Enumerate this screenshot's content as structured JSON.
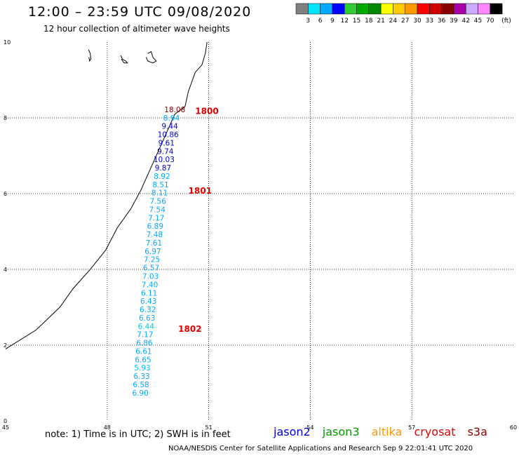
{
  "header": {
    "title": "12:00 – 23:59 UTC 09/08/2020",
    "subtitle": "12 hour collection of altimeter wave heights"
  },
  "colorbar": {
    "unit": "(ft)",
    "bins": [
      {
        "label": "3",
        "color": "#808080"
      },
      {
        "label": "6",
        "color": "#00e5ff"
      },
      {
        "label": "9",
        "color": "#00aaff"
      },
      {
        "label": "12",
        "color": "#0000ff"
      },
      {
        "label": "15",
        "color": "#33cc33"
      },
      {
        "label": "18",
        "color": "#00aa00"
      },
      {
        "label": "21",
        "color": "#008800"
      },
      {
        "label": "24",
        "color": "#ffff00"
      },
      {
        "label": "27",
        "color": "#ffcc00"
      },
      {
        "label": "30",
        "color": "#ff9900"
      },
      {
        "label": "33",
        "color": "#ff0000"
      },
      {
        "label": "36",
        "color": "#cc0000"
      },
      {
        "label": "39",
        "color": "#880000"
      },
      {
        "label": "42",
        "color": "#aa00aa"
      },
      {
        "label": "45",
        "color": "#ccaaff"
      },
      {
        "label": "70",
        "color": "#ff88ff"
      },
      {
        "label": "",
        "color": "#000000"
      }
    ]
  },
  "footer": {
    "note": "note: 1) Time is in UTC; 2) SWH is in feet",
    "credit": "NOAA/NESDIS Center for Satellite Applications and Research    Sep  9 22:01:41 UTC 2020",
    "satellites": [
      {
        "name": "jason2",
        "color": "#0000dd"
      },
      {
        "name": "jason3",
        "color": "#009900"
      },
      {
        "name": "altika",
        "color": "#ff9900"
      },
      {
        "name": "cryosat",
        "color": "#dd0000"
      },
      {
        "name": "s3a",
        "color": "#880000"
      }
    ]
  },
  "chart_data": {
    "type": "scatter",
    "xlim": [
      45,
      60
    ],
    "ylim": [
      0,
      10
    ],
    "x_ticks": [
      "45",
      "48",
      "51",
      "54",
      "57",
      "60"
    ],
    "y_ticks": [
      "0",
      "2",
      "4",
      "6",
      "8",
      "10"
    ],
    "grid": true,
    "coastline": [
      [
        45.0,
        1.9
      ],
      [
        45.9,
        2.4
      ],
      [
        46.6,
        3.0
      ],
      [
        47.0,
        3.5
      ],
      [
        47.5,
        4.0
      ],
      [
        47.95,
        4.5
      ],
      [
        48.3,
        5.1
      ],
      [
        48.7,
        5.6
      ],
      [
        49.0,
        6.1
      ],
      [
        49.3,
        6.7
      ],
      [
        49.6,
        7.3
      ],
      [
        49.8,
        7.7
      ],
      [
        50.0,
        8.1
      ],
      [
        50.3,
        8.3
      ],
      [
        50.4,
        8.7
      ],
      [
        50.6,
        9.2
      ],
      [
        50.8,
        9.4
      ],
      [
        50.9,
        9.7
      ],
      [
        50.95,
        10.0
      ]
    ],
    "islands": [
      {
        "outline": [
          [
            47.45,
            9.8
          ],
          [
            47.5,
            9.7
          ],
          [
            47.52,
            9.55
          ],
          [
            47.48,
            9.5
          ],
          [
            47.46,
            9.6
          ]
        ]
      },
      {
        "outline": [
          [
            48.4,
            9.65
          ],
          [
            48.45,
            9.55
          ],
          [
            48.55,
            9.5
          ],
          [
            48.6,
            9.45
          ],
          [
            48.5,
            9.45
          ],
          [
            48.42,
            9.55
          ]
        ]
      },
      {
        "outline": [
          [
            49.2,
            9.7
          ],
          [
            49.3,
            9.75
          ],
          [
            49.35,
            9.6
          ],
          [
            49.45,
            9.5
          ],
          [
            49.35,
            9.45
          ],
          [
            49.2,
            9.5
          ],
          [
            49.15,
            9.6
          ]
        ]
      }
    ],
    "passes": [
      {
        "time": "1800",
        "x": 50.6,
        "y": 8.1
      },
      {
        "time": "1801",
        "x": 50.4,
        "y": 6.0
      },
      {
        "time": "1802",
        "x": 50.1,
        "y": 2.35
      }
    ],
    "points": [
      {
        "x": 50.0,
        "y": 8.15,
        "value": "18.08",
        "color": "#880000"
      },
      {
        "x": 49.9,
        "y": 7.93,
        "value": "8.94",
        "color": "#00aaff"
      },
      {
        "x": 49.85,
        "y": 7.71,
        "value": "9.44",
        "color": "#0000cc"
      },
      {
        "x": 49.8,
        "y": 7.49,
        "value": "10.86",
        "color": "#0000cc"
      },
      {
        "x": 49.75,
        "y": 7.27,
        "value": "9.61",
        "color": "#0000cc"
      },
      {
        "x": 49.72,
        "y": 7.05,
        "value": "9.74",
        "color": "#0000cc"
      },
      {
        "x": 49.68,
        "y": 6.83,
        "value": "10.03",
        "color": "#0000cc"
      },
      {
        "x": 49.65,
        "y": 6.61,
        "value": "9.87",
        "color": "#0000cc"
      },
      {
        "x": 49.62,
        "y": 6.39,
        "value": "8.92",
        "color": "#00aaff"
      },
      {
        "x": 49.58,
        "y": 6.17,
        "value": "8.51",
        "color": "#00aaff"
      },
      {
        "x": 49.55,
        "y": 5.95,
        "value": "8.11",
        "color": "#00aaff"
      },
      {
        "x": 49.5,
        "y": 5.73,
        "value": "7.56",
        "color": "#00aaff"
      },
      {
        "x": 49.48,
        "y": 5.51,
        "value": "7.54",
        "color": "#00aaff"
      },
      {
        "x": 49.45,
        "y": 5.29,
        "value": "7.17",
        "color": "#00aaff"
      },
      {
        "x": 49.42,
        "y": 5.07,
        "value": "6.89",
        "color": "#00aaff"
      },
      {
        "x": 49.4,
        "y": 4.85,
        "value": "7.48",
        "color": "#00aaff"
      },
      {
        "x": 49.38,
        "y": 4.63,
        "value": "7.61",
        "color": "#00aaff"
      },
      {
        "x": 49.35,
        "y": 4.41,
        "value": "6.97",
        "color": "#00aaff"
      },
      {
        "x": 49.32,
        "y": 4.19,
        "value": "7.25",
        "color": "#00aaff"
      },
      {
        "x": 49.3,
        "y": 3.97,
        "value": "6.57",
        "color": "#00aaff"
      },
      {
        "x": 49.28,
        "y": 3.75,
        "value": "7.03",
        "color": "#00aaff"
      },
      {
        "x": 49.26,
        "y": 3.53,
        "value": "7.40",
        "color": "#00aaff"
      },
      {
        "x": 49.24,
        "y": 3.31,
        "value": "6.11",
        "color": "#00aaff"
      },
      {
        "x": 49.22,
        "y": 3.09,
        "value": "6.43",
        "color": "#00aaff"
      },
      {
        "x": 49.2,
        "y": 2.87,
        "value": "6.32",
        "color": "#00aaff"
      },
      {
        "x": 49.18,
        "y": 2.65,
        "value": "6.63",
        "color": "#00aaff"
      },
      {
        "x": 49.15,
        "y": 2.43,
        "value": "6.44",
        "color": "#00c8e8"
      },
      {
        "x": 49.12,
        "y": 2.21,
        "value": "7.17",
        "color": "#00aaff"
      },
      {
        "x": 49.1,
        "y": 1.99,
        "value": "6.86",
        "color": "#00aaff"
      },
      {
        "x": 49.08,
        "y": 1.77,
        "value": "6.61",
        "color": "#00aaff"
      },
      {
        "x": 49.06,
        "y": 1.55,
        "value": "6.65",
        "color": "#00aaff"
      },
      {
        "x": 49.04,
        "y": 1.33,
        "value": "5.93",
        "color": "#00c8e8"
      },
      {
        "x": 49.02,
        "y": 1.11,
        "value": "6.33",
        "color": "#00aaff"
      },
      {
        "x": 49.0,
        "y": 0.89,
        "value": "6.58",
        "color": "#00aaff"
      },
      {
        "x": 48.98,
        "y": 0.67,
        "value": "6.90",
        "color": "#00aaff"
      }
    ]
  }
}
